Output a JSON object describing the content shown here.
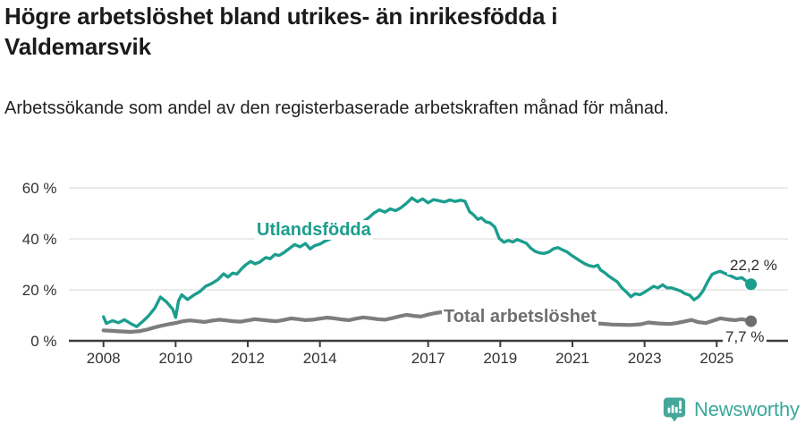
{
  "header": {
    "title": "Högre arbetslöshet bland utrikes- än inrikesfödda i Valdemarsvik",
    "subtitle": "Arbetssökande som andel av den registerbaserade arbetskraften månad för månad."
  },
  "colors": {
    "accent_teal": "#1b9e8e",
    "line_gray": "#7d7d7d",
    "dot_gray": "#6e6e6e",
    "grid": "#e2e2e2",
    "axis": "#3c3c3c",
    "tick_label": "#333333",
    "logo_teal": "#44a79a"
  },
  "chart_data": {
    "type": "line",
    "title": "Högre arbetslöshet bland utrikes- än inrikesfödda i Valdemarsvik",
    "subtitle": "Arbetssökande som andel av den registerbaserade arbetskraften månad för månad.",
    "xlabel": "",
    "ylabel": "",
    "grid": "horizontal",
    "legend_position": "inline-labels",
    "xlim": [
      2007.8,
      2026.3
    ],
    "ylim": [
      0,
      62
    ],
    "x_ticks": [
      2008,
      2010,
      2012,
      2014,
      2017,
      2019,
      2021,
      2023,
      2025
    ],
    "y_tick_values": [
      0,
      20,
      40,
      60
    ],
    "y_tick_labels": [
      "0 %",
      "20 %",
      "40 %",
      "60 %"
    ],
    "series": [
      {
        "name": "Utlandsfödda",
        "color": "#1b9e8e",
        "dot_color": "#1b9e8e",
        "stroke_width": 3.4,
        "end_label": "22,2 %",
        "end_value": 22.2,
        "points": [
          [
            2008.0,
            9.4
          ],
          [
            2008.08,
            6.8
          ],
          [
            2008.25,
            7.9
          ],
          [
            2008.42,
            7.1
          ],
          [
            2008.58,
            8.3
          ],
          [
            2008.75,
            6.8
          ],
          [
            2008.92,
            5.6
          ],
          [
            2009.08,
            7.5
          ],
          [
            2009.25,
            9.8
          ],
          [
            2009.42,
            12.8
          ],
          [
            2009.58,
            17.2
          ],
          [
            2009.75,
            15.2
          ],
          [
            2009.92,
            12.4
          ],
          [
            2010.0,
            9.2
          ],
          [
            2010.08,
            15.7
          ],
          [
            2010.17,
            18.1
          ],
          [
            2010.33,
            16.2
          ],
          [
            2010.5,
            17.9
          ],
          [
            2010.67,
            19.3
          ],
          [
            2010.83,
            21.4
          ],
          [
            2011.0,
            22.5
          ],
          [
            2011.17,
            24.0
          ],
          [
            2011.33,
            26.3
          ],
          [
            2011.45,
            25.0
          ],
          [
            2011.58,
            26.6
          ],
          [
            2011.7,
            26.2
          ],
          [
            2011.83,
            28.3
          ],
          [
            2011.95,
            29.9
          ],
          [
            2012.08,
            31.2
          ],
          [
            2012.2,
            30.2
          ],
          [
            2012.33,
            30.9
          ],
          [
            2012.5,
            32.7
          ],
          [
            2012.62,
            32.2
          ],
          [
            2012.75,
            33.9
          ],
          [
            2012.87,
            33.5
          ],
          [
            2013.0,
            34.6
          ],
          [
            2013.15,
            36.2
          ],
          [
            2013.3,
            37.8
          ],
          [
            2013.45,
            36.9
          ],
          [
            2013.6,
            38.2
          ],
          [
            2013.73,
            36.1
          ],
          [
            2013.85,
            37.3
          ],
          [
            2014.0,
            38.0
          ],
          [
            2014.15,
            39.2
          ],
          [
            2014.3,
            40.1
          ],
          [
            2014.45,
            40.9
          ],
          [
            2014.6,
            41.6
          ],
          [
            2014.75,
            42.8
          ],
          [
            2014.9,
            44.0
          ],
          [
            2015.05,
            45.3
          ],
          [
            2015.2,
            46.8
          ],
          [
            2015.35,
            48.3
          ],
          [
            2015.5,
            50.2
          ],
          [
            2015.65,
            51.4
          ],
          [
            2015.8,
            50.5
          ],
          [
            2015.95,
            51.8
          ],
          [
            2016.1,
            51.1
          ],
          [
            2016.25,
            52.3
          ],
          [
            2016.4,
            54.0
          ],
          [
            2016.55,
            56.1
          ],
          [
            2016.7,
            54.6
          ],
          [
            2016.85,
            55.7
          ],
          [
            2017.0,
            54.2
          ],
          [
            2017.15,
            55.4
          ],
          [
            2017.3,
            55.0
          ],
          [
            2017.45,
            54.5
          ],
          [
            2017.6,
            55.3
          ],
          [
            2017.75,
            54.7
          ],
          [
            2017.9,
            55.2
          ],
          [
            2018.02,
            54.8
          ],
          [
            2018.15,
            50.7
          ],
          [
            2018.25,
            49.6
          ],
          [
            2018.38,
            47.7
          ],
          [
            2018.47,
            48.3
          ],
          [
            2018.6,
            46.7
          ],
          [
            2018.72,
            46.3
          ],
          [
            2018.85,
            44.6
          ],
          [
            2018.97,
            40.2
          ],
          [
            2019.1,
            38.7
          ],
          [
            2019.22,
            39.4
          ],
          [
            2019.35,
            38.8
          ],
          [
            2019.47,
            39.8
          ],
          [
            2019.6,
            39.0
          ],
          [
            2019.72,
            38.3
          ],
          [
            2019.85,
            36.3
          ],
          [
            2019.97,
            35.1
          ],
          [
            2020.1,
            34.5
          ],
          [
            2020.22,
            34.3
          ],
          [
            2020.35,
            34.9
          ],
          [
            2020.47,
            36.1
          ],
          [
            2020.6,
            36.6
          ],
          [
            2020.72,
            35.7
          ],
          [
            2020.85,
            34.9
          ],
          [
            2020.97,
            33.6
          ],
          [
            2021.1,
            32.4
          ],
          [
            2021.22,
            31.3
          ],
          [
            2021.35,
            30.2
          ],
          [
            2021.47,
            29.5
          ],
          [
            2021.6,
            29.1
          ],
          [
            2021.7,
            29.7
          ],
          [
            2021.78,
            27.8
          ],
          [
            2021.9,
            26.7
          ],
          [
            2022.0,
            25.5
          ],
          [
            2022.12,
            24.3
          ],
          [
            2022.24,
            23.2
          ],
          [
            2022.37,
            20.8
          ],
          [
            2022.5,
            19.1
          ],
          [
            2022.62,
            17.3
          ],
          [
            2022.74,
            18.5
          ],
          [
            2022.87,
            18.1
          ],
          [
            2023.0,
            19.1
          ],
          [
            2023.12,
            20.2
          ],
          [
            2023.25,
            21.4
          ],
          [
            2023.37,
            20.8
          ],
          [
            2023.5,
            22.0
          ],
          [
            2023.62,
            20.8
          ],
          [
            2023.75,
            20.8
          ],
          [
            2023.87,
            20.2
          ],
          [
            2024.0,
            19.6
          ],
          [
            2024.12,
            18.5
          ],
          [
            2024.25,
            17.9
          ],
          [
            2024.37,
            16.1
          ],
          [
            2024.5,
            17.3
          ],
          [
            2024.62,
            19.6
          ],
          [
            2024.75,
            23.2
          ],
          [
            2024.87,
            26.1
          ],
          [
            2025.0,
            26.9
          ],
          [
            2025.1,
            27.3
          ],
          [
            2025.25,
            26.3
          ],
          [
            2025.4,
            25.4
          ],
          [
            2025.55,
            24.4
          ],
          [
            2025.7,
            24.8
          ],
          [
            2025.82,
            23.4
          ],
          [
            2025.95,
            22.2
          ]
        ]
      },
      {
        "name": "Total arbetslöshet",
        "color": "#7d7d7d",
        "dot_color": "#6e6e6e",
        "stroke_width": 4.2,
        "end_label": "7,7 %",
        "end_value": 7.7,
        "points": [
          [
            2008.0,
            4.1
          ],
          [
            2008.25,
            3.9
          ],
          [
            2008.5,
            3.7
          ],
          [
            2008.75,
            3.5
          ],
          [
            2009.0,
            3.8
          ],
          [
            2009.2,
            4.4
          ],
          [
            2009.4,
            5.2
          ],
          [
            2009.6,
            5.9
          ],
          [
            2009.8,
            6.5
          ],
          [
            2010.0,
            7.0
          ],
          [
            2010.2,
            7.7
          ],
          [
            2010.4,
            8.0
          ],
          [
            2010.6,
            7.7
          ],
          [
            2010.8,
            7.4
          ],
          [
            2011.0,
            7.9
          ],
          [
            2011.2,
            8.3
          ],
          [
            2011.4,
            8.0
          ],
          [
            2011.6,
            7.7
          ],
          [
            2011.8,
            7.5
          ],
          [
            2012.0,
            8.0
          ],
          [
            2012.2,
            8.5
          ],
          [
            2012.4,
            8.2
          ],
          [
            2012.6,
            7.9
          ],
          [
            2012.8,
            7.7
          ],
          [
            2013.0,
            8.2
          ],
          [
            2013.2,
            8.8
          ],
          [
            2013.4,
            8.5
          ],
          [
            2013.6,
            8.1
          ],
          [
            2013.8,
            8.3
          ],
          [
            2014.0,
            8.7
          ],
          [
            2014.2,
            9.1
          ],
          [
            2014.4,
            8.8
          ],
          [
            2014.6,
            8.4
          ],
          [
            2014.8,
            8.1
          ],
          [
            2015.0,
            8.7
          ],
          [
            2015.2,
            9.2
          ],
          [
            2015.4,
            8.9
          ],
          [
            2015.6,
            8.5
          ],
          [
            2015.8,
            8.3
          ],
          [
            2016.0,
            8.9
          ],
          [
            2016.2,
            9.6
          ],
          [
            2016.4,
            10.2
          ],
          [
            2016.6,
            9.8
          ],
          [
            2016.8,
            9.5
          ],
          [
            2017.0,
            10.3
          ],
          [
            2017.2,
            10.9
          ],
          [
            2017.35,
            11.2
          ],
          [
            2017.5,
            10.9
          ],
          [
            2017.7,
            10.5
          ],
          [
            2017.9,
            10.1
          ],
          [
            2018.2,
            9.6
          ],
          [
            2018.5,
            9.1
          ],
          [
            2018.8,
            8.7
          ],
          [
            2019.1,
            8.4
          ],
          [
            2019.4,
            8.0
          ],
          [
            2019.7,
            7.7
          ],
          [
            2020.0,
            8.2
          ],
          [
            2020.3,
            8.6
          ],
          [
            2020.6,
            8.3
          ],
          [
            2020.9,
            7.9
          ],
          [
            2021.2,
            7.4
          ],
          [
            2021.5,
            7.0
          ],
          [
            2021.8,
            6.7
          ],
          [
            2022.1,
            6.4
          ],
          [
            2022.4,
            6.3
          ],
          [
            2022.6,
            6.2
          ],
          [
            2022.9,
            6.5
          ],
          [
            2023.1,
            7.2
          ],
          [
            2023.4,
            6.8
          ],
          [
            2023.7,
            6.6
          ],
          [
            2023.9,
            7.0
          ],
          [
            2024.1,
            7.6
          ],
          [
            2024.3,
            8.2
          ],
          [
            2024.5,
            7.3
          ],
          [
            2024.7,
            7.0
          ],
          [
            2024.9,
            7.9
          ],
          [
            2025.1,
            8.8
          ],
          [
            2025.3,
            8.4
          ],
          [
            2025.5,
            8.1
          ],
          [
            2025.7,
            8.5
          ],
          [
            2025.95,
            7.7
          ]
        ]
      }
    ]
  },
  "footer": {
    "brand": "Newsworthy"
  }
}
